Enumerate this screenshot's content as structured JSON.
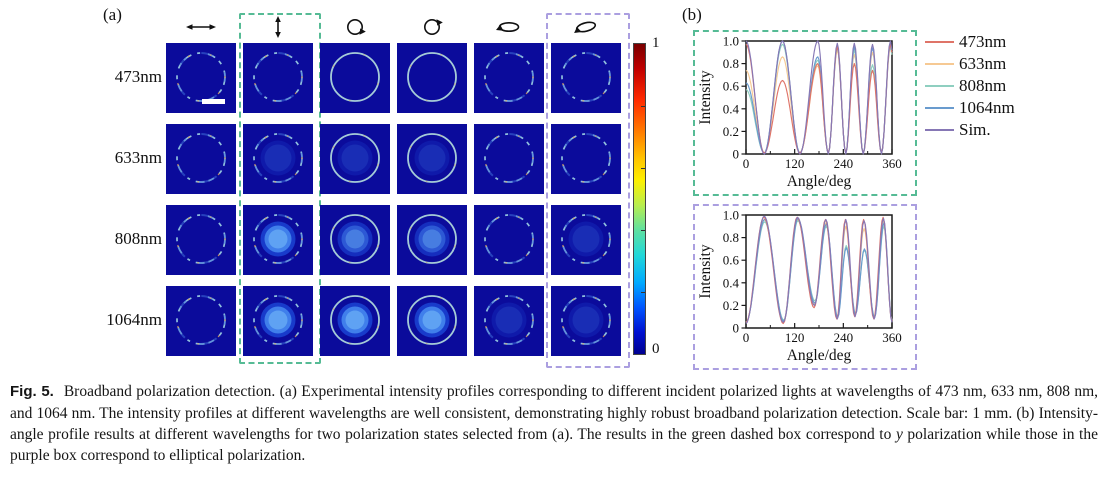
{
  "panel_a": {
    "label": "(a)",
    "row_labels": [
      "473nm",
      "633nm",
      "808nm",
      "1064nm"
    ],
    "column_icons": [
      {
        "name": "x-linear-polarization-icon",
        "type": "arrow-h"
      },
      {
        "name": "y-linear-polarization-icon",
        "type": "arrow-v"
      },
      {
        "name": "circular-polarization-cw-icon",
        "type": "circle-a"
      },
      {
        "name": "circular-polarization-ccw-icon",
        "type": "circle-b"
      },
      {
        "name": "elliptical-polarization-icon-1",
        "type": "ellipse-a"
      },
      {
        "name": "elliptical-polarization-icon-2",
        "type": "ellipse-b"
      }
    ],
    "cells": [
      [
        {
          "ring": "seg",
          "disk": 0,
          "scalebar": true
        },
        {
          "ring": "seg",
          "disk": 0
        },
        {
          "ring": "full",
          "disk": 0
        },
        {
          "ring": "full",
          "disk": 0
        },
        {
          "ring": "seg",
          "disk": 0
        },
        {
          "ring": "seg",
          "disk": 0
        }
      ],
      [
        {
          "ring": "seg",
          "disk": 0
        },
        {
          "ring": "seg",
          "disk": 1
        },
        {
          "ring": "full",
          "disk": 1
        },
        {
          "ring": "full",
          "disk": 1
        },
        {
          "ring": "seg",
          "disk": 0
        },
        {
          "ring": "seg",
          "disk": 0
        }
      ],
      [
        {
          "ring": "seg",
          "disk": 0
        },
        {
          "ring": "seg",
          "disk": 3
        },
        {
          "ring": "full",
          "disk": 2
        },
        {
          "ring": "full",
          "disk": 2
        },
        {
          "ring": "seg",
          "disk": 0
        },
        {
          "ring": "seg",
          "disk": 1
        }
      ],
      [
        {
          "ring": "seg",
          "disk": 0
        },
        {
          "ring": "seg",
          "disk": 3
        },
        {
          "ring": "full",
          "disk": 3
        },
        {
          "ring": "full",
          "disk": 3
        },
        {
          "ring": "seg",
          "disk": 1
        },
        {
          "ring": "seg",
          "disk": 1
        }
      ]
    ],
    "colorbar": {
      "max_label": "1",
      "min_label": "0"
    }
  },
  "panel_b": {
    "label": "(b)"
  },
  "chart_data": [
    {
      "type": "line",
      "title": "y polarization (green dashed box)",
      "xlabel": "Angle/deg",
      "ylabel": "Intensity",
      "xlim": [
        0,
        360
      ],
      "ylim": [
        0,
        1.0
      ],
      "xticks": [
        0,
        120,
        240,
        360
      ],
      "xminorticks": [
        60,
        180,
        300
      ],
      "yticks": [
        0,
        0.2,
        0.4,
        0.6,
        0.8,
        1.0
      ],
      "grid": false,
      "legend_position": "right-outside",
      "series": [
        {
          "name": "473nm",
          "color": "#df7468",
          "keypoints": [
            [
              0,
              0.97
            ],
            [
              45,
              0.01
            ],
            [
              90,
              0.65
            ],
            [
              133,
              0.01
            ],
            [
              177,
              0.8
            ],
            [
              203,
              0.01
            ],
            [
              225,
              0.95
            ],
            [
              246,
              0.01
            ],
            [
              267,
              0.8
            ],
            [
              289,
              0.01
            ],
            [
              312,
              0.74
            ],
            [
              334,
              0.01
            ],
            [
              356,
              0.97
            ],
            [
              360,
              0.9
            ]
          ]
        },
        {
          "name": "633nm",
          "color": "#f6c993",
          "keypoints": [
            [
              0,
              0.74
            ],
            [
              45,
              0.01
            ],
            [
              90,
              0.86
            ],
            [
              133,
              0.01
            ],
            [
              177,
              0.78
            ],
            [
              203,
              0.01
            ],
            [
              225,
              0.92
            ],
            [
              246,
              0.01
            ],
            [
              267,
              0.88
            ],
            [
              289,
              0.01
            ],
            [
              312,
              0.9
            ],
            [
              334,
              0.01
            ],
            [
              356,
              0.95
            ],
            [
              360,
              0.88
            ]
          ]
        },
        {
          "name": "808nm",
          "color": "#8fcfc0",
          "keypoints": [
            [
              0,
              0.57
            ],
            [
              45,
              0.01
            ],
            [
              90,
              0.97
            ],
            [
              133,
              0.01
            ],
            [
              177,
              0.83
            ],
            [
              203,
              0.01
            ],
            [
              225,
              0.94
            ],
            [
              246,
              0.01
            ],
            [
              267,
              0.92
            ],
            [
              289,
              0.01
            ],
            [
              312,
              0.79
            ],
            [
              334,
              0.01
            ],
            [
              356,
              0.95
            ],
            [
              360,
              0.88
            ]
          ]
        },
        {
          "name": "1064nm",
          "color": "#699bce",
          "keypoints": [
            [
              0,
              0.63
            ],
            [
              45,
              0.01
            ],
            [
              90,
              1.0
            ],
            [
              133,
              0.01
            ],
            [
              177,
              0.86
            ],
            [
              203,
              0.01
            ],
            [
              225,
              0.95
            ],
            [
              246,
              0.01
            ],
            [
              267,
              0.95
            ],
            [
              289,
              0.01
            ],
            [
              312,
              0.94
            ],
            [
              334,
              0.01
            ],
            [
              356,
              0.98
            ],
            [
              360,
              0.9
            ]
          ]
        },
        {
          "name": "Sim.",
          "color": "#8677b5",
          "keypoints": [
            [
              0,
              1.0
            ],
            [
              45,
              0
            ],
            [
              90,
              1.0
            ],
            [
              133,
              0
            ],
            [
              177,
              1.0
            ],
            [
              203,
              0
            ],
            [
              225,
              0.98
            ],
            [
              246,
              0
            ],
            [
              267,
              0.98
            ],
            [
              289,
              0
            ],
            [
              312,
              0.97
            ],
            [
              334,
              0
            ],
            [
              356,
              1.0
            ],
            [
              360,
              0.92
            ]
          ]
        }
      ]
    },
    {
      "type": "line",
      "title": "elliptical polarization (purple dashed box)",
      "xlabel": "Angle/deg",
      "ylabel": "Intensity",
      "xlim": [
        0,
        360
      ],
      "ylim": [
        0,
        1.0
      ],
      "xticks": [
        0,
        120,
        240,
        360
      ],
      "xminorticks": [
        60,
        180,
        300
      ],
      "yticks": [
        0,
        0.2,
        0.4,
        0.6,
        0.8,
        1.0
      ],
      "grid": false,
      "legend_position": "none",
      "series": [
        {
          "name": "473nm",
          "color": "#df7468",
          "keypoints": [
            [
              0,
              0.05
            ],
            [
              44,
              0.98
            ],
            [
              92,
              0.04
            ],
            [
              126,
              0.98
            ],
            [
              168,
              0.18
            ],
            [
              196,
              0.96
            ],
            [
              224,
              0.08
            ],
            [
              245,
              0.96
            ],
            [
              268,
              0.1
            ],
            [
              290,
              0.96
            ],
            [
              315,
              0.08
            ],
            [
              338,
              0.98
            ],
            [
              360,
              0.06
            ]
          ]
        },
        {
          "name": "633nm",
          "color": "#f6c993",
          "keypoints": [
            [
              0,
              0.05
            ],
            [
              45,
              0.96
            ],
            [
              93,
              0.06
            ],
            [
              127,
              0.96
            ],
            [
              169,
              0.21
            ],
            [
              197,
              0.93
            ],
            [
              225,
              0.09
            ],
            [
              246,
              0.9
            ],
            [
              269,
              0.12
            ],
            [
              291,
              0.88
            ],
            [
              316,
              0.09
            ],
            [
              339,
              0.95
            ],
            [
              360,
              0.06
            ]
          ]
        },
        {
          "name": "808nm",
          "color": "#8fcfc0",
          "keypoints": [
            [
              0,
              0.05
            ],
            [
              46,
              0.94
            ],
            [
              93,
              0.07
            ],
            [
              128,
              0.95
            ],
            [
              170,
              0.24
            ],
            [
              198,
              0.9
            ],
            [
              226,
              0.1
            ],
            [
              247,
              0.73
            ],
            [
              270,
              0.13
            ],
            [
              292,
              0.69
            ],
            [
              317,
              0.1
            ],
            [
              340,
              0.9
            ],
            [
              360,
              0.07
            ]
          ]
        },
        {
          "name": "1064nm",
          "color": "#699bce",
          "keypoints": [
            [
              0,
              0.05
            ],
            [
              46,
              0.96
            ],
            [
              93,
              0.06
            ],
            [
              128,
              0.97
            ],
            [
              170,
              0.22
            ],
            [
              198,
              0.92
            ],
            [
              226,
              0.09
            ],
            [
              247,
              0.71
            ],
            [
              270,
              0.12
            ],
            [
              292,
              0.7
            ],
            [
              317,
              0.09
            ],
            [
              340,
              0.93
            ],
            [
              360,
              0.06
            ]
          ]
        },
        {
          "name": "Sim.",
          "color": "#8677b5",
          "keypoints": [
            [
              0,
              0.04
            ],
            [
              45,
              0.99
            ],
            [
              92,
              0.05
            ],
            [
              127,
              0.98
            ],
            [
              169,
              0.2
            ],
            [
              197,
              0.96
            ],
            [
              225,
              0.08
            ],
            [
              246,
              0.96
            ],
            [
              269,
              0.1
            ],
            [
              291,
              0.95
            ],
            [
              316,
              0.08
            ],
            [
              339,
              0.97
            ],
            [
              360,
              0.05
            ]
          ]
        }
      ]
    }
  ],
  "caption": {
    "fig_label": "Fig. 5.",
    "text1": "Broadband polarization detection. (a) Experimental intensity profiles corresponding to different incident polarized lights at wavelengths of 473 nm, 633 nm, 808 nm, and 1064 nm. The intensity profiles at different wavelengths are well consistent, demonstrating highly robust broadband polarization detection. Scale bar: 1 mm. (b) Intensity-angle profile results at different wavelengths for two polarization states selected from (a). The results in the green dashed box correspond to ",
    "italic_word": "y",
    "text2": " polarization while those in the purple box correspond to elliptical polarization."
  },
  "colors": {
    "green_box": "#56bb95",
    "purple_box": "#ab9fe0",
    "cell_bg": "#0b0b9b",
    "axis": "#1a1a1a"
  }
}
